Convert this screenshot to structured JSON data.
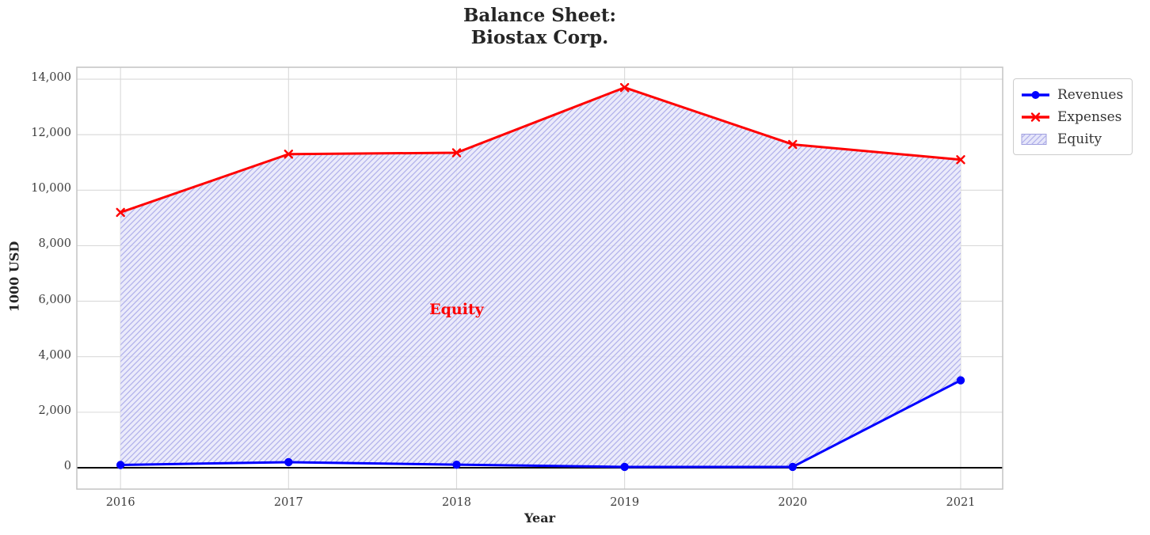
{
  "title": {
    "line1": "Balance Sheet:",
    "line2": "Biostax Corp."
  },
  "axes": {
    "xlabel": "Year",
    "ylabel": "1000 USD"
  },
  "annotation": {
    "text": "Equity",
    "color": "#ff0000"
  },
  "legend": {
    "items": [
      {
        "label": "Revenues",
        "marker": "line-circle",
        "color": "#0000ff"
      },
      {
        "label": "Expenses",
        "marker": "line-x",
        "color": "#ff0000"
      },
      {
        "label": "Equity",
        "marker": "hatched-patch",
        "fill_color": "#e6e6fa",
        "hatch_color": "#a8a8e8",
        "edge_color": "#9f9fde"
      }
    ]
  },
  "chart_data": {
    "type": "area",
    "title": "Balance Sheet:\nBiostax Corp.",
    "x": [
      2016,
      2017,
      2018,
      2019,
      2020,
      2021
    ],
    "series": [
      {
        "name": "Revenues",
        "type": "line",
        "color": "#0000ff",
        "marker": "circle",
        "values": [
          100,
          200,
          110,
          30,
          30,
          3150
        ]
      },
      {
        "name": "Expenses",
        "type": "line",
        "color": "#ff0000",
        "marker": "x",
        "values": [
          9200,
          11300,
          11350,
          13700,
          11650,
          11100
        ]
      }
    ],
    "fill_between": {
      "name": "Equity",
      "between": [
        "Revenues",
        "Expenses"
      ],
      "fill_color": "#e6e6fa",
      "fill_opacity": 0.8,
      "hatch": "//",
      "hatch_color": "#b0b0ea"
    },
    "annotation": {
      "text": "Equity",
      "x": 2018,
      "y": 5700,
      "color": "#ff0000"
    },
    "xlabel": "Year",
    "ylabel": "1000 USD",
    "xlim": [
      2015.74,
      2021.25
    ],
    "ylim": [
      -770,
      14430
    ],
    "xticks": [
      2016,
      2017,
      2018,
      2019,
      2020,
      2021
    ],
    "xtick_labels": [
      "2016",
      "2017",
      "2018",
      "2019",
      "2020",
      "2021"
    ],
    "yticks": [
      0,
      2000,
      4000,
      6000,
      8000,
      10000,
      12000,
      14000
    ],
    "ytick_labels": [
      "0",
      "2,000",
      "4,000",
      "6,000",
      "8,000",
      "10,000",
      "12,000",
      "14,000"
    ],
    "grid": true,
    "zero_line": {
      "y": 0,
      "color": "#000000"
    },
    "legend_position": "outside upper right"
  },
  "colors": {
    "background": "#ffffff",
    "grid": "#d9d9d9",
    "spine": "#c4c4c4",
    "title_text": "#262626",
    "tick_text": "#3d3d3d"
  }
}
